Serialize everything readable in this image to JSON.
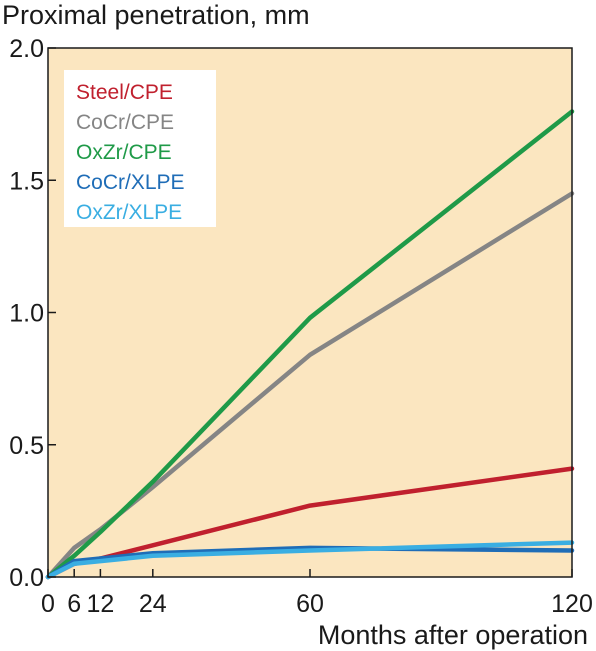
{
  "colors": {
    "plot_background": "#fbe6c0",
    "axis": "#1a1a1a",
    "legend_background": "#ffffff"
  },
  "chart_data": {
    "type": "line",
    "title": "",
    "ylabel": "Proximal penetration, mm",
    "xlabel": "Months after operation",
    "xlim": [
      0,
      120
    ],
    "ylim": [
      0,
      2.0
    ],
    "x_ticks": [
      0,
      6,
      12,
      24,
      60,
      120
    ],
    "x_tick_labels": [
      "0",
      "6",
      "12",
      "24",
      "60",
      "120"
    ],
    "y_ticks": [
      0,
      0.5,
      1.0,
      1.5,
      2.0
    ],
    "y_tick_labels": [
      "0.0",
      "0.5",
      "1.0",
      "1.5",
      "2.0"
    ],
    "grid": false,
    "legend_position": "top-left",
    "series": [
      {
        "name": "Steel/CPE",
        "color": "#c0202e",
        "points": [
          [
            0,
            0
          ],
          [
            6,
            0.05
          ],
          [
            12,
            0.07
          ],
          [
            24,
            0.12
          ],
          [
            60,
            0.27
          ],
          [
            120,
            0.41
          ]
        ]
      },
      {
        "name": "CoCr/CPE",
        "color": "#858585",
        "points": [
          [
            0,
            0
          ],
          [
            6,
            0.11
          ],
          [
            12,
            0.18
          ],
          [
            24,
            0.34
          ],
          [
            60,
            0.84
          ],
          [
            120,
            1.45
          ]
        ]
      },
      {
        "name": "OxZr/CPE",
        "color": "#1f9a48",
        "points": [
          [
            0,
            0
          ],
          [
            6,
            0.08
          ],
          [
            12,
            0.17
          ],
          [
            24,
            0.36
          ],
          [
            60,
            0.98
          ],
          [
            120,
            1.76
          ]
        ]
      },
      {
        "name": "CoCr/XLPE",
        "color": "#1f6db7",
        "points": [
          [
            0,
            0
          ],
          [
            6,
            0.06
          ],
          [
            12,
            0.07
          ],
          [
            24,
            0.09
          ],
          [
            60,
            0.11
          ],
          [
            120,
            0.1
          ]
        ]
      },
      {
        "name": "OxZr/XLPE",
        "color": "#3aaee2",
        "points": [
          [
            0,
            0
          ],
          [
            6,
            0.05
          ],
          [
            12,
            0.06
          ],
          [
            24,
            0.08
          ],
          [
            60,
            0.1
          ],
          [
            120,
            0.13
          ]
        ]
      }
    ]
  }
}
